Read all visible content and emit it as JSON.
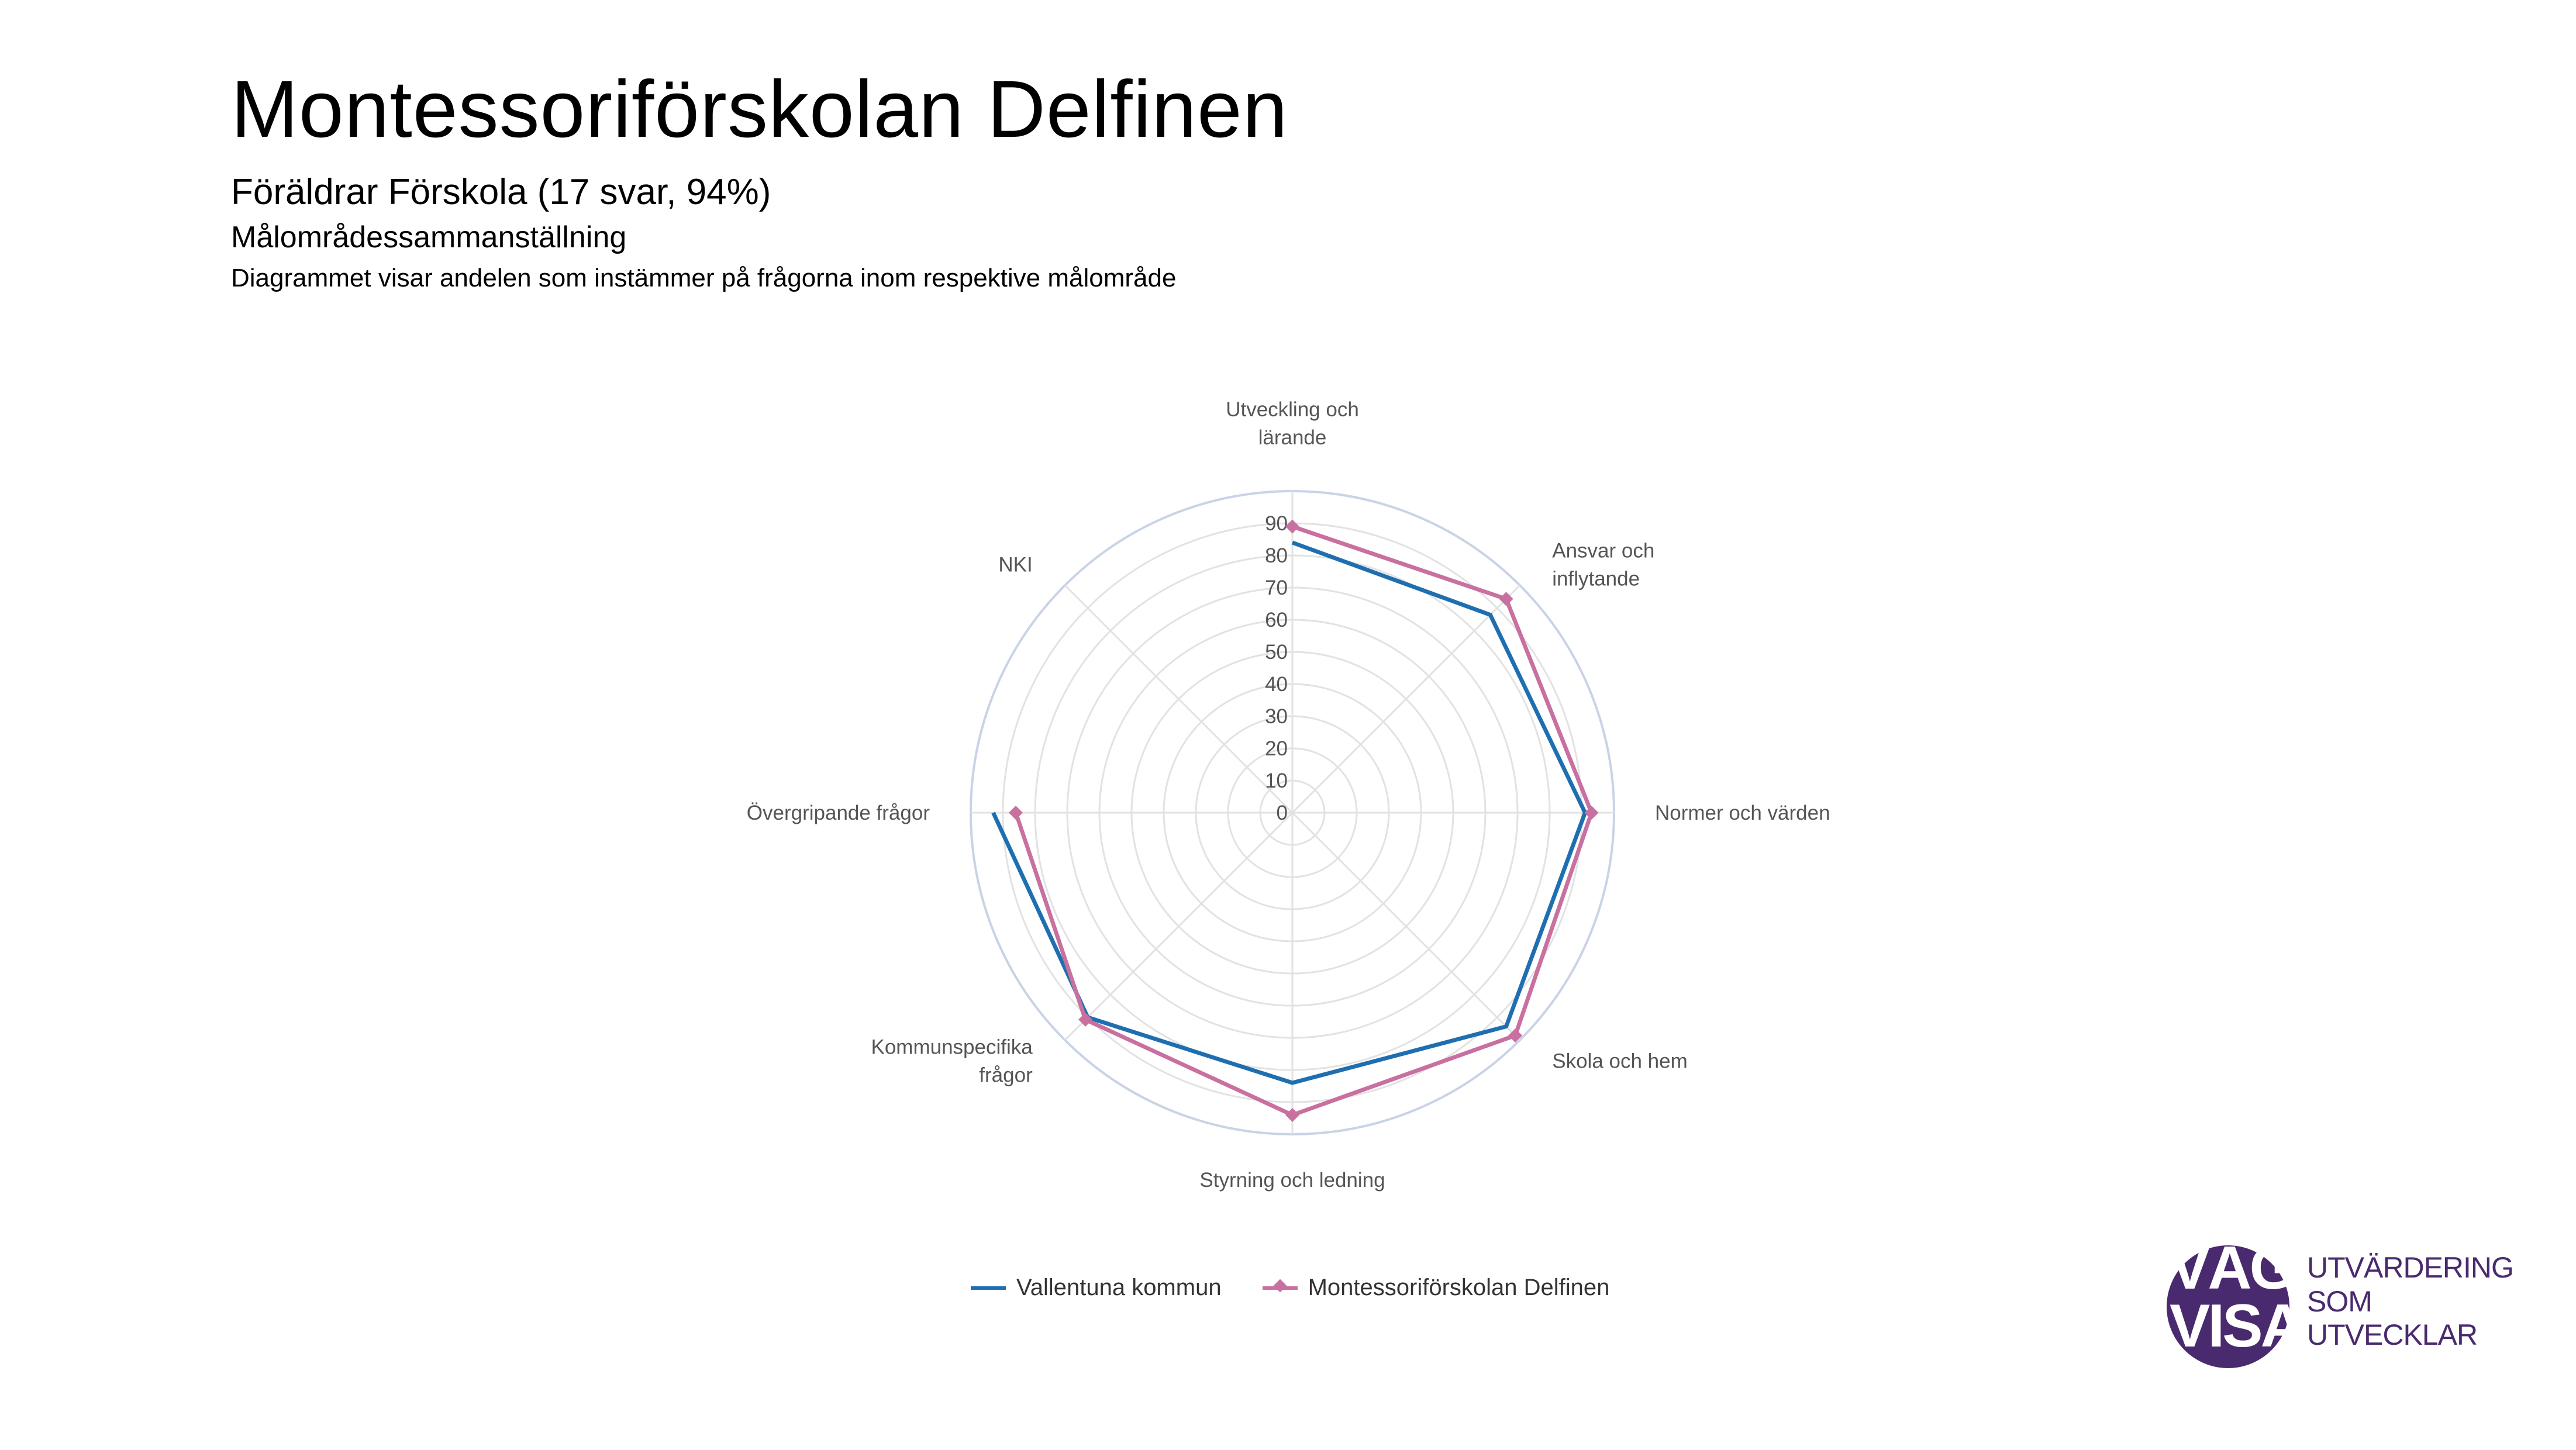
{
  "header": {
    "title": "Montessoriförskolan Delfinen",
    "subtitle": "Föräldrar Förskola  (17 svar, 94%)",
    "section": "Målområdessammanställning",
    "description": "Diagrammet visar andelen som instämmer på frågorna inom respektive målområde"
  },
  "chart_data": {
    "type": "radar",
    "axes": [
      [
        "Utveckling och",
        "lärande"
      ],
      [
        "Ansvar och",
        "inflytande"
      ],
      [
        "Normer och värden"
      ],
      [
        "Skola och hem"
      ],
      [
        "Styrning och ledning"
      ],
      [
        "Kommunspecifika",
        "frågor"
      ],
      [
        "Övergripande frågor"
      ],
      [
        "NKI"
      ]
    ],
    "r_ticks": [
      "0",
      "10",
      "20",
      "30",
      "40",
      "50",
      "60",
      "70",
      "80",
      "90"
    ],
    "r_range": [
      0,
      100
    ],
    "grid": true,
    "legend_position": "bottom",
    "series": [
      {
        "name": "Vallentuna kommun",
        "color": "#1f6fb0",
        "marker": "none",
        "values": [
          84,
          87,
          91,
          94,
          84,
          90,
          93,
          null
        ]
      },
      {
        "name": "Montessoriförskolan Delfinen",
        "color": "#c8709f",
        "marker": "diamond",
        "values": [
          89,
          94,
          93,
          98,
          94,
          91,
          86,
          null
        ]
      }
    ]
  },
  "logo": {
    "line1": "VÄGA",
    "line2": "VISA",
    "tag1": "UTVÄRDERING",
    "tag2": "SOM UTVECKLAR",
    "color": "#4a2a6e"
  }
}
